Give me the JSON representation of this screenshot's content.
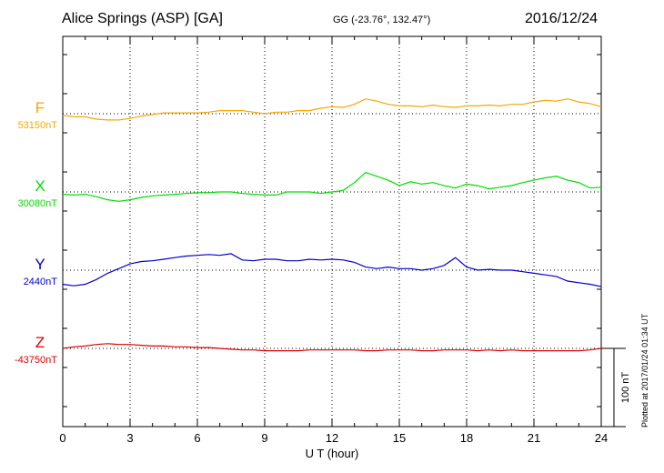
{
  "header": {
    "station": "Alice Springs (ASP)  [GA]",
    "coords": "GG (-23.76°, 132.47°)",
    "date": "2016/12/24"
  },
  "plotted_note": "Plotted at 2017/01/24 01:34 UT",
  "colors": {
    "F": "#f5a800",
    "X": "#00dd00",
    "Y": "#0000cc",
    "Z": "#dd0000",
    "axes": "#000000"
  },
  "chart_data": {
    "type": "line",
    "xlabel": "U T (hour)",
    "xlim": [
      0,
      24
    ],
    "xticks": [
      0,
      3,
      6,
      9,
      12,
      15,
      18,
      21,
      24
    ],
    "scale_bar_label": "100 nT",
    "scale_bar_nT": 100,
    "grid": true,
    "series": [
      {
        "name": "F",
        "baseline_label": "53150nT",
        "color": "#f5a800",
        "x": [
          0,
          0.5,
          1,
          1.5,
          2,
          2.5,
          3,
          3.5,
          4,
          4.5,
          5,
          5.5,
          6,
          6.5,
          7,
          7.5,
          8,
          8.5,
          9,
          9.5,
          10,
          10.5,
          11,
          11.5,
          12,
          12.5,
          13,
          13.5,
          14,
          14.5,
          15,
          15.5,
          16,
          16.5,
          17,
          17.5,
          18,
          18.5,
          19,
          19.5,
          20,
          20.5,
          21,
          21.5,
          22,
          22.5,
          23,
          23.5,
          24
        ],
        "y": [
          -2,
          -4,
          -4,
          -7,
          -8,
          -8,
          -6,
          -3,
          -1,
          1,
          1,
          1,
          1,
          2,
          4,
          4,
          4,
          2,
          0,
          2,
          2,
          4,
          4,
          7,
          9,
          8,
          12,
          19,
          16,
          12,
          10,
          10,
          9,
          11,
          9,
          8,
          10,
          10,
          11,
          10,
          12,
          12,
          15,
          17,
          16,
          19,
          15,
          13,
          9
        ]
      },
      {
        "name": "X",
        "baseline_label": "30080nT",
        "color": "#00dd00",
        "x": [
          0,
          0.5,
          1,
          1.5,
          2,
          2.5,
          3,
          3.5,
          4,
          4.5,
          5,
          5.5,
          6,
          6.5,
          7,
          7.5,
          8,
          8.5,
          9,
          9.5,
          10,
          10.5,
          11,
          11.5,
          12,
          12.5,
          13,
          13.5,
          14,
          14.5,
          15,
          15.5,
          16,
          16.5,
          17,
          17.5,
          18,
          18.5,
          19,
          19.5,
          20,
          20.5,
          21,
          21.5,
          22,
          22.5,
          23,
          23.5,
          24
        ],
        "y": [
          -3,
          -4,
          -3,
          -6,
          -10,
          -12,
          -10,
          -7,
          -5,
          -4,
          -3,
          -2,
          -1,
          -1,
          0,
          0,
          -2,
          -3,
          -4,
          -4,
          0,
          0,
          0,
          -2,
          0,
          2,
          12,
          25,
          20,
          15,
          8,
          13,
          10,
          12,
          8,
          5,
          10,
          8,
          4,
          6,
          8,
          12,
          15,
          18,
          20,
          15,
          12,
          5,
          6
        ]
      },
      {
        "name": "Y",
        "baseline_label": "2440nT",
        "color": "#0000cc",
        "x": [
          0,
          0.5,
          1,
          1.5,
          2,
          2.5,
          3,
          3.5,
          4,
          4.5,
          5,
          5.5,
          6,
          6.5,
          7,
          7.5,
          8,
          8.5,
          9,
          9.5,
          10,
          10.5,
          11,
          11.5,
          12,
          12.5,
          13,
          13.5,
          14,
          14.5,
          15,
          15.5,
          16,
          16.5,
          17,
          17.5,
          18,
          18.5,
          19,
          19.5,
          20,
          20.5,
          21,
          21.5,
          22,
          22.5,
          23,
          23.5,
          24
        ],
        "y": [
          -18,
          -20,
          -18,
          -12,
          -4,
          2,
          8,
          11,
          12,
          14,
          16,
          18,
          19,
          20,
          19,
          21,
          13,
          12,
          14,
          14,
          12,
          12,
          14,
          13,
          14,
          13,
          10,
          4,
          2,
          4,
          2,
          2,
          0,
          2,
          6,
          16,
          4,
          0,
          1,
          0,
          0,
          -2,
          -4,
          -6,
          -8,
          -14,
          -16,
          -18,
          -21
        ]
      },
      {
        "name": "Z",
        "baseline_label": "-43750nT",
        "color": "#dd0000",
        "x": [
          0,
          0.5,
          1,
          1.5,
          2,
          2.5,
          3,
          3.5,
          4,
          4.5,
          5,
          5.5,
          6,
          6.5,
          7,
          7.5,
          8,
          8.5,
          9,
          9.5,
          10,
          10.5,
          11,
          11.5,
          12,
          12.5,
          13,
          13.5,
          14,
          14.5,
          15,
          15.5,
          16,
          16.5,
          17,
          17.5,
          18,
          18.5,
          19,
          19.5,
          20,
          20.5,
          21,
          21.5,
          22,
          22.5,
          23,
          23.5,
          24
        ],
        "y": [
          0,
          2,
          3,
          5,
          6,
          5,
          5,
          4,
          3,
          3,
          2,
          2,
          1,
          1,
          0,
          -1,
          -2,
          -2,
          -3,
          -3,
          -3,
          -3,
          -2,
          -2,
          -2,
          -2,
          -2,
          -3,
          -3,
          -2,
          -2,
          -2,
          -3,
          -3,
          -2,
          -2,
          -2,
          -3,
          -2,
          -3,
          -2,
          -3,
          -3,
          -3,
          -3,
          -3,
          -3,
          -2,
          0
        ]
      }
    ]
  }
}
